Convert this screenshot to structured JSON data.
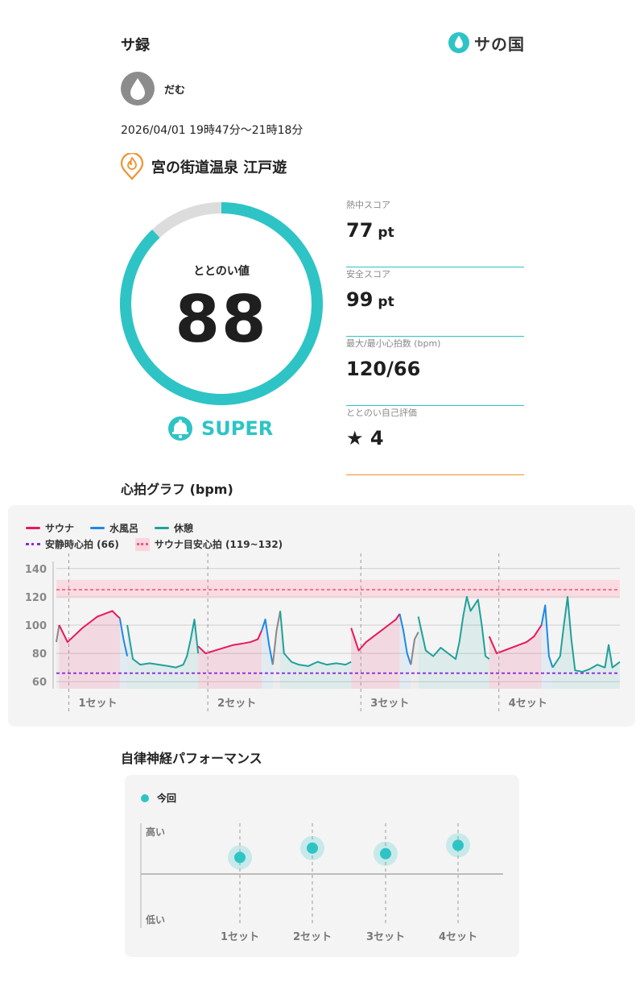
{
  "app": {
    "title": "サ録",
    "logo_text": "サの国"
  },
  "user": {
    "name": "だむ"
  },
  "session": {
    "datetime": "2026/04/01 19時47分〜21時18分",
    "facility": "宮の街道温泉 江戸遊"
  },
  "totonoi": {
    "label": "ととのい値",
    "value": "88",
    "value_fraction": 0.88,
    "rank": "SUPER"
  },
  "scores": [
    {
      "label": "熱中スコア",
      "value": "77",
      "unit": "pt"
    },
    {
      "label": "安全スコア",
      "value": "99",
      "unit": "pt"
    },
    {
      "label": "最大/最小心拍数 (bpm)",
      "value": "120/66",
      "unit": ""
    },
    {
      "label": "ととのい自己評価",
      "value": "★ 4",
      "unit": ""
    }
  ],
  "heart_chart": {
    "section_title": "心拍グラフ (bpm)",
    "legend": {
      "sauna": "サウナ",
      "water": "水風呂",
      "rest": "休憩",
      "resting_hr": "安静時心拍 (66)",
      "target_hr": "サウナ目安心拍 (119~132)"
    },
    "colors": {
      "sauna": "#e8185a",
      "water": "#1e88e5",
      "rest": "#21a09a",
      "transition": "#888888",
      "resting": "#8a2be2",
      "target": "#f05a7a"
    }
  },
  "chart_data": [
    {
      "type": "line",
      "ylim": [
        55,
        145
      ],
      "yticks": [
        60,
        80,
        100,
        120,
        140
      ],
      "resting_hr": 66,
      "target_band": [
        119,
        132
      ],
      "set_labels": [
        "1セット",
        "2セット",
        "3セット",
        "4セット"
      ],
      "phases": [
        {
          "phase": "transition",
          "t": [
            0,
            1.5
          ],
          "values": [
            88,
            100
          ]
        },
        {
          "phase": "sauna",
          "t": [
            1.5,
            6,
            10,
            14,
            18,
            22,
            26,
            30,
            33,
            34
          ],
          "values": [
            100,
            88,
            93,
            98,
            102,
            106,
            108,
            110,
            106,
            105
          ]
        },
        {
          "phase": "water",
          "t": [
            34,
            36,
            38
          ],
          "values": [
            105,
            90,
            78
          ]
        },
        {
          "phase": "rest",
          "t": [
            38,
            41,
            45,
            50,
            55,
            60,
            64,
            68,
            70,
            72,
            74,
            76
          ],
          "values": [
            100,
            76,
            72,
            73,
            72,
            71,
            70,
            72,
            78,
            90,
            104,
            80
          ]
        },
        {
          "phase": "sauna",
          "t": [
            76,
            80,
            85,
            90,
            95,
            100,
            104,
            108,
            110
          ],
          "values": [
            85,
            80,
            82,
            84,
            86,
            87,
            88,
            90,
            96
          ]
        },
        {
          "phase": "water",
          "t": [
            110,
            112,
            114,
            116
          ],
          "values": [
            96,
            104,
            86,
            72
          ]
        },
        {
          "phase": "transition",
          "t": [
            116,
            118,
            120
          ],
          "values": [
            72,
            96,
            110
          ]
        },
        {
          "phase": "rest",
          "t": [
            120,
            122,
            126,
            130,
            135,
            140,
            145,
            150,
            155,
            158
          ],
          "values": [
            110,
            80,
            74,
            72,
            71,
            74,
            72,
            73,
            72,
            74
          ]
        },
        {
          "phase": "sauna",
          "t": [
            158,
            162,
            166,
            170,
            174,
            178,
            182,
            184
          ],
          "values": [
            98,
            82,
            88,
            92,
            96,
            100,
            104,
            108
          ]
        },
        {
          "phase": "water",
          "t": [
            184,
            186,
            188,
            190
          ],
          "values": [
            108,
            96,
            80,
            72
          ]
        },
        {
          "phase": "transition",
          "t": [
            190,
            192,
            194
          ],
          "values": [
            72,
            90,
            95
          ]
        },
        {
          "phase": "rest",
          "t": [
            194,
            198,
            202,
            206,
            210,
            214,
            216,
            218,
            220,
            222,
            224,
            226,
            228,
            230,
            232
          ],
          "values": [
            106,
            82,
            78,
            84,
            80,
            76,
            88,
            106,
            120,
            110,
            114,
            118,
            100,
            78,
            76
          ]
        },
        {
          "phase": "sauna",
          "t": [
            232,
            236,
            240,
            244,
            248,
            252,
            256,
            260
          ],
          "values": [
            92,
            80,
            82,
            84,
            86,
            88,
            92,
            100
          ]
        },
        {
          "phase": "water",
          "t": [
            260,
            262,
            264,
            266
          ],
          "values": [
            100,
            114,
            78,
            70
          ]
        },
        {
          "phase": "rest",
          "t": [
            266,
            270,
            272,
            274,
            276,
            278,
            282,
            286,
            290,
            294,
            296,
            298,
            302
          ],
          "values": [
            70,
            78,
            100,
            120,
            90,
            68,
            67,
            69,
            72,
            70,
            86,
            70,
            74
          ]
        }
      ]
    },
    {
      "type": "scatter",
      "series": [
        {
          "name": "今回",
          "values": [
            0.62,
            0.72,
            0.66,
            0.75
          ]
        }
      ],
      "categories": [
        "1セット",
        "2セット",
        "3セット",
        "4セット"
      ],
      "ylabels": {
        "high": "高い",
        "low": "低い"
      }
    }
  ],
  "ans": {
    "section_title": "自律神経パフォーマンス",
    "legend": "今回"
  }
}
